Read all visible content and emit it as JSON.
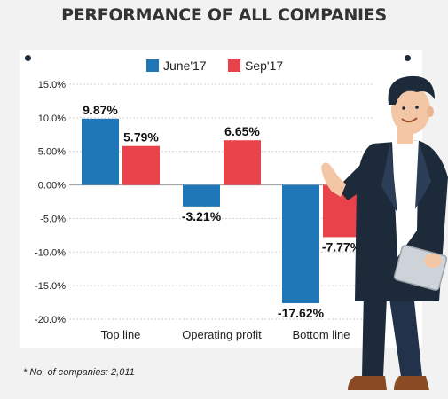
{
  "title": "PERFORMANCE OF ALL COMPANIES",
  "footnote": "* No. of companies: 2,011",
  "colors": {
    "june": "#1f77b8",
    "sep": "#e8424a"
  },
  "chart_data": {
    "type": "bar",
    "categories": [
      "Top line",
      "Operating profit",
      "Bottom line"
    ],
    "series": [
      {
        "name": "June'17",
        "values": [
          9.87,
          -3.21,
          -17.62
        ],
        "labels": [
          "9.87%",
          "-3.21%",
          "-17.62%"
        ]
      },
      {
        "name": "Sep'17",
        "values": [
          5.79,
          6.65,
          -7.77
        ],
        "labels": [
          "5.79%",
          "6.65%",
          "-7.77%"
        ]
      }
    ],
    "yticks": [
      "15.0%",
      "10.0%",
      "5.00%",
      "0.00%",
      "-5.0%",
      "-10.0%",
      "-15.0%",
      "-20.0%"
    ],
    "ytick_values": [
      15,
      10,
      5,
      0,
      -5,
      -10,
      -15,
      -20
    ],
    "ylim": [
      -20,
      15
    ],
    "grid": true,
    "legend": "top-center"
  }
}
